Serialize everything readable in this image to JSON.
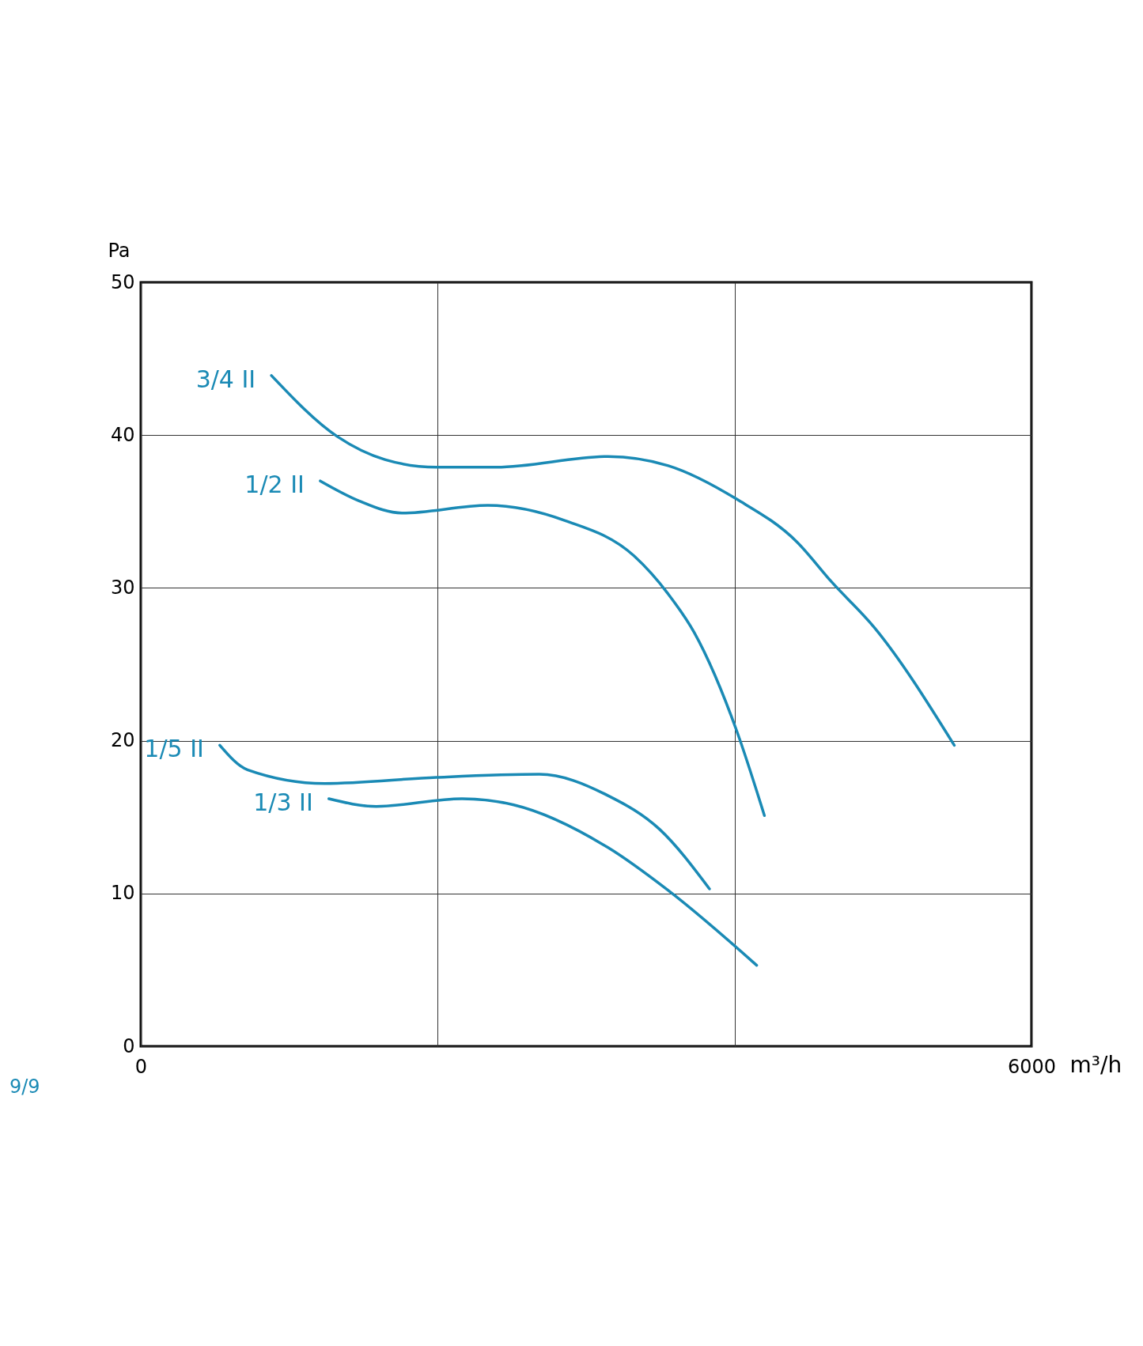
{
  "chart_data": {
    "type": "line",
    "xlabel": "m³/h",
    "ylabel": "Pa",
    "annotations": [
      "9/9"
    ],
    "xlim": [
      0,
      6000
    ],
    "xticks": [
      0,
      {
        "value": 2000,
        "label": null
      },
      {
        "value": 4000,
        "label": null
      },
      6000
    ],
    "ylim": [
      0,
      50
    ],
    "yticks": [
      0,
      10,
      20,
      30,
      40,
      50
    ],
    "grid": true,
    "legend": false,
    "series": [
      {
        "name": "3/4 II",
        "color": "#1a8ab5",
        "x": [
          880,
          1325,
          1644,
          1991,
          2396,
          3148,
          3553,
          4016,
          4421,
          4653,
          4942,
          5480
        ],
        "values": [
          43.9,
          39.9,
          38.4,
          37.9,
          37.9,
          38.6,
          38.0,
          35.8,
          33.0,
          30.4,
          27.4,
          19.7
        ]
      },
      {
        "name": "1/2 II",
        "color": "#1a8ab5",
        "x": [
          1209,
          1470,
          1759,
          2338,
          2859,
          3322,
          3553,
          3727,
          4016,
          4201
        ],
        "values": [
          37.0,
          35.7,
          34.9,
          35.4,
          34.4,
          32.1,
          29.6,
          27.1,
          20.6,
          15.1
        ]
      },
      {
        "name": "1/5 II",
        "color": "#1a8ab5",
        "x": [
          532,
          718,
          1238,
          1991,
          2685,
          3148,
          3495,
          3831
        ],
        "values": [
          19.7,
          18.1,
          17.2,
          17.6,
          17.8,
          16.4,
          14.2,
          10.3
        ]
      },
      {
        "name": "1/3 II",
        "color": "#1a8ab5",
        "x": [
          1267,
          1586,
          2164,
          2512,
          3148,
          3553,
          4149
        ],
        "values": [
          16.2,
          15.7,
          16.2,
          15.8,
          13.0,
          10.2,
          5.3
        ]
      }
    ]
  }
}
